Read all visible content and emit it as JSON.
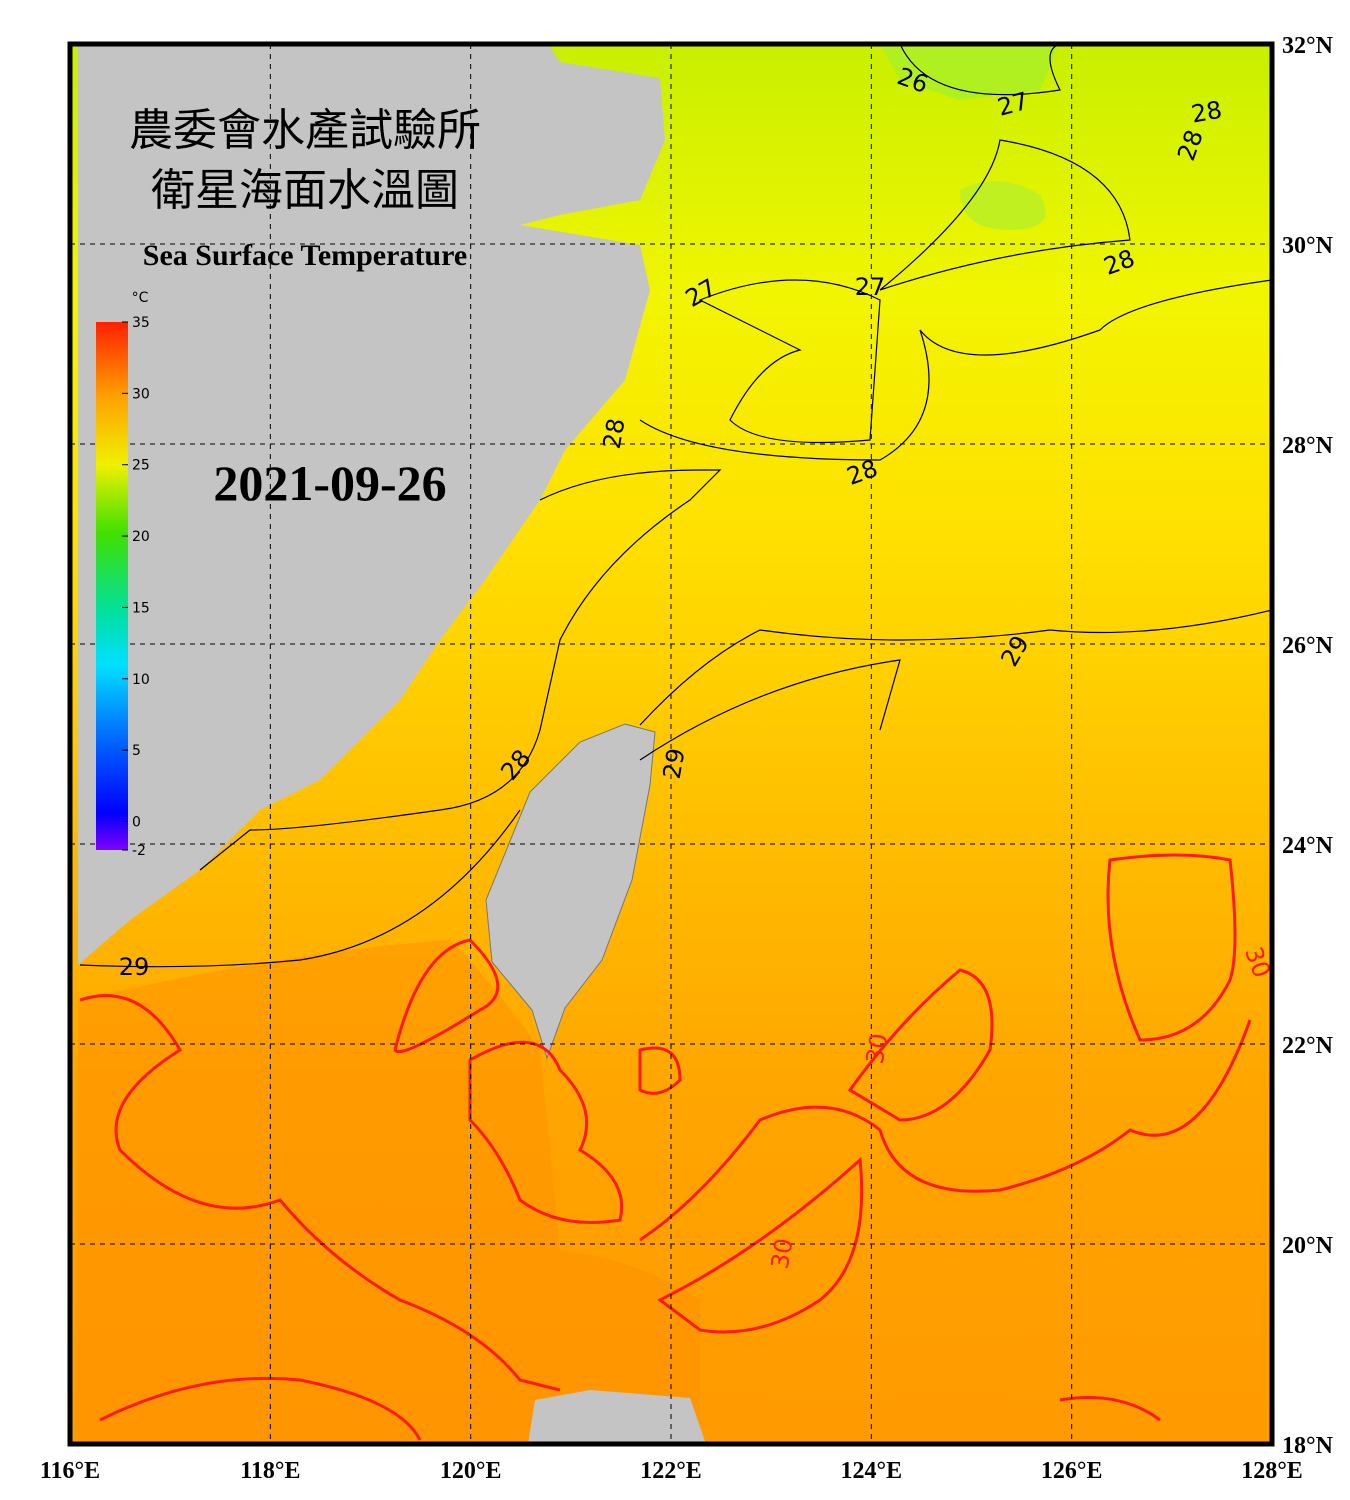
{
  "title": {
    "line1": "農委會水產試驗所",
    "line2": "衛星海面水溫圖",
    "english": "Sea Surface Temperature"
  },
  "date": "2021-09-26",
  "colorbar": {
    "unit": "°C",
    "range": [
      -2,
      35
    ],
    "ticks": [
      35,
      30,
      25,
      20,
      15,
      10,
      5,
      0,
      -2
    ]
  },
  "longitude_labels": [
    "116°E",
    "118°E",
    "120°E",
    "122°E",
    "124°E",
    "126°E",
    "128°E"
  ],
  "latitude_labels": [
    "32°N",
    "30°N",
    "28°N",
    "26°N",
    "24°N",
    "22°N",
    "20°N",
    "18°N"
  ],
  "contour_labels": [
    26,
    27,
    28,
    28,
    27,
    27,
    28,
    28,
    29,
    28,
    28,
    29,
    29,
    30,
    30,
    30
  ]
}
